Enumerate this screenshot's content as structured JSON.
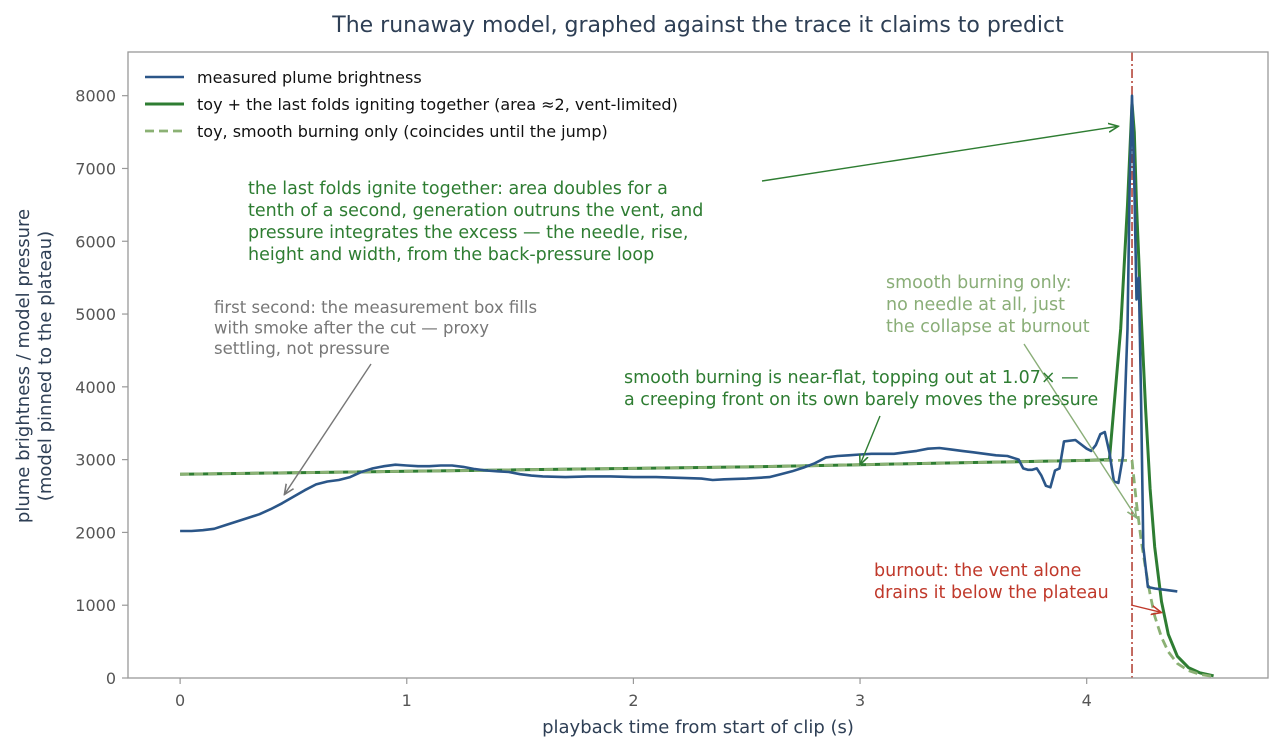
{
  "chart_data": {
    "type": "line",
    "title": "The runaway model, graphed against the trace it claims to predict",
    "xlabel": "playback time from start of clip (s)",
    "ylabel": [
      "plume brightness  /  model pressure",
      "(model pinned to the plateau)"
    ],
    "xlim": [
      -0.23,
      4.8
    ],
    "ylim": [
      0,
      8600
    ],
    "xticks": [
      0,
      1,
      2,
      3,
      4
    ],
    "yticks": [
      0,
      1000,
      2000,
      3000,
      4000,
      5000,
      6000,
      7000,
      8000
    ],
    "grid": false,
    "legend_placement": "top-left",
    "colors": {
      "measured": "#2b5688",
      "toy_full": "#2e7d32",
      "toy_smooth": "#8bb174",
      "burnout_line": "#b03a2e",
      "frame": "#999999",
      "annot_grey": "#777777",
      "annot_green": "#2e7d32",
      "annot_lightgreen": "#8aae78",
      "annot_red": "#c0392b"
    },
    "series": [
      {
        "name": "measured plume brightness",
        "style": "solid",
        "x": [
          0.0,
          0.05,
          0.1,
          0.15,
          0.2,
          0.25,
          0.3,
          0.35,
          0.4,
          0.45,
          0.5,
          0.55,
          0.6,
          0.65,
          0.7,
          0.75,
          0.8,
          0.85,
          0.9,
          0.95,
          1.0,
          1.05,
          1.1,
          1.15,
          1.2,
          1.25,
          1.3,
          1.35,
          1.4,
          1.45,
          1.5,
          1.55,
          1.6,
          1.7,
          1.8,
          1.9,
          2.0,
          2.1,
          2.2,
          2.3,
          2.35,
          2.4,
          2.5,
          2.6,
          2.65,
          2.7,
          2.75,
          2.8,
          2.85,
          2.9,
          2.95,
          3.0,
          3.05,
          3.1,
          3.15,
          3.2,
          3.25,
          3.3,
          3.35,
          3.4,
          3.45,
          3.5,
          3.55,
          3.6,
          3.65,
          3.7,
          3.72,
          3.74,
          3.76,
          3.78,
          3.8,
          3.82,
          3.84,
          3.86,
          3.88,
          3.9,
          3.95,
          4.0,
          4.02,
          4.04,
          4.06,
          4.08,
          4.1,
          4.12,
          4.14,
          4.16,
          4.18,
          4.19,
          4.2,
          4.21,
          4.22,
          4.23,
          4.24,
          4.25,
          4.27,
          4.3,
          4.35,
          4.4
        ],
        "y": [
          2020,
          2020,
          2030,
          2050,
          2100,
          2150,
          2200,
          2250,
          2320,
          2400,
          2490,
          2580,
          2660,
          2700,
          2720,
          2760,
          2830,
          2880,
          2910,
          2930,
          2920,
          2910,
          2910,
          2920,
          2920,
          2900,
          2870,
          2850,
          2840,
          2830,
          2800,
          2780,
          2770,
          2760,
          2770,
          2770,
          2760,
          2760,
          2750,
          2740,
          2720,
          2730,
          2740,
          2760,
          2800,
          2840,
          2890,
          2950,
          3030,
          3050,
          3060,
          3070,
          3080,
          3080,
          3080,
          3100,
          3120,
          3150,
          3160,
          3140,
          3120,
          3100,
          3080,
          3060,
          3050,
          3000,
          2880,
          2860,
          2860,
          2880,
          2780,
          2640,
          2620,
          2850,
          2880,
          3250,
          3270,
          3150,
          3120,
          3200,
          3350,
          3380,
          3100,
          2700,
          2680,
          3050,
          4800,
          6800,
          8000,
          6800,
          5200,
          5500,
          3800,
          1800,
          1250,
          1230,
          1210,
          1190
        ]
      },
      {
        "name": "toy + the last folds igniting together (area ≈2, vent-limited)",
        "style": "solid",
        "x": [
          0.0,
          0.5,
          1.0,
          1.5,
          2.0,
          2.5,
          3.0,
          3.5,
          4.0,
          4.1,
          4.15,
          4.18,
          4.2,
          4.21,
          4.22,
          4.24,
          4.26,
          4.28,
          4.3,
          4.33,
          4.36,
          4.4,
          4.45,
          4.5,
          4.56
        ],
        "y": [
          2800,
          2820,
          2840,
          2860,
          2880,
          2900,
          2930,
          2960,
          2990,
          3000,
          4800,
          6500,
          7900,
          7500,
          6500,
          5000,
          3700,
          2600,
          1800,
          1050,
          600,
          300,
          140,
          70,
          30
        ]
      },
      {
        "name": "toy, smooth burning only (coincides until the jump)",
        "style": "dashed",
        "x": [
          0.0,
          0.5,
          1.0,
          1.5,
          2.0,
          2.5,
          3.0,
          3.5,
          4.0,
          4.1,
          4.15,
          4.2,
          4.22,
          4.24,
          4.26,
          4.28,
          4.3,
          4.33,
          4.36,
          4.4,
          4.45,
          4.5,
          4.56
        ],
        "y": [
          2800,
          2820,
          2840,
          2860,
          2880,
          2900,
          2930,
          2960,
          2990,
          2990,
          2990,
          2990,
          2400,
          1900,
          1500,
          1150,
          850,
          560,
          360,
          200,
          100,
          50,
          20
        ]
      }
    ],
    "vline": {
      "x": 4.2
    },
    "annotations": [
      {
        "id": "first-second",
        "color": "grey",
        "lines": [
          "first second: the measurement box fills",
          "with smoke after the cut — proxy",
          "settling, not pressure"
        ],
        "arrow_to": [
          0.46,
          2520
        ]
      },
      {
        "id": "last-folds",
        "color": "green",
        "lines": [
          "the last folds ignite together: area doubles for a",
          "tenth of a second, generation outruns the vent, and",
          "pressure integrates the excess — the needle, rise,",
          "height and width, from the back-pressure loop"
        ],
        "arrow_to": [
          4.14,
          7580
        ]
      },
      {
        "id": "smooth-only",
        "color": "lightgreen",
        "lines": [
          "smooth burning only:",
          "no needle at all, just",
          "the collapse at burnout"
        ],
        "arrow_to": [
          4.22,
          2200
        ]
      },
      {
        "id": "near-flat",
        "color": "green",
        "lines": [
          "smooth burning is near-flat, topping out at 1.07× —",
          "a creeping front on its own barely moves the pressure"
        ],
        "arrow_to": [
          3.0,
          2930
        ]
      },
      {
        "id": "burnout",
        "color": "red",
        "lines": [
          "burnout: the vent alone",
          "drains it below the plateau"
        ],
        "arrow_to": [
          4.33,
          900
        ]
      }
    ]
  }
}
